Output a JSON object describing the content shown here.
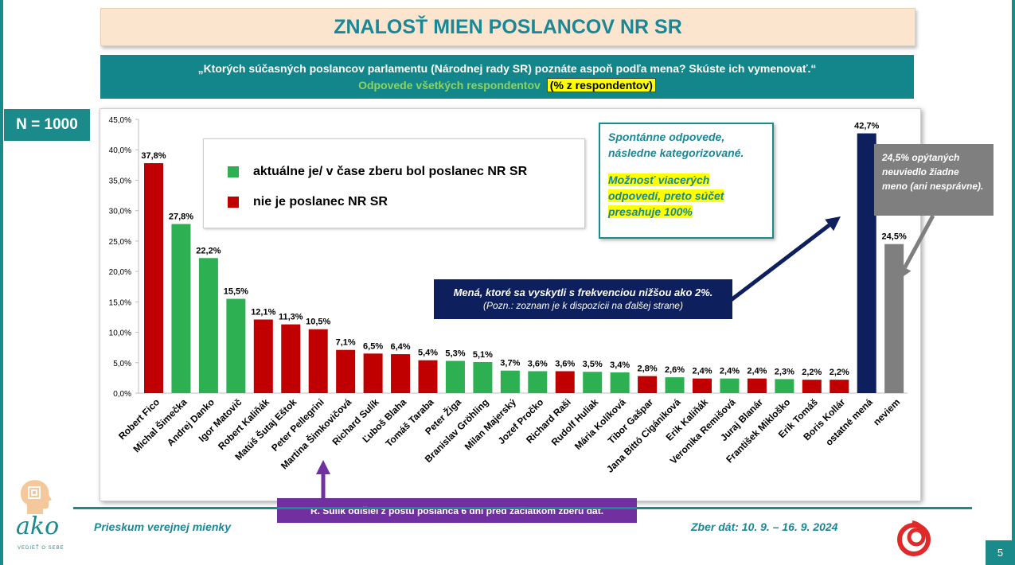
{
  "title": "ZNALOSŤ MIEN POSLANCOV NR SR",
  "question": {
    "text": "„Ktorých súčasných poslancov parlamentu (Národnej rady SR) poznáte aspoň podľa mena? Skúste ich vymenovať.“",
    "subtitle": "Odpovede všetkých respondentov",
    "unit_note": "(% z respondentov)"
  },
  "sample": "N = 1000",
  "legend": [
    {
      "label": "aktuálne je/ v čase zberu bol poslanec NR SR",
      "color": "#2db052"
    },
    {
      "label": "nie je poslanec NR SR",
      "color": "#c00000"
    }
  ],
  "notes": {
    "teal_line1": "Spontánne odpovede,",
    "teal_line2": "následne kategorizované.",
    "teal_hl1": "Možnosť viacerých",
    "teal_hl2": "odpovedí, preto súčet",
    "teal_hl3": "presahuje 100%",
    "navy_line1": "Mená, ktoré sa vyskytli  s frekvenciou nižšou ako 2%.",
    "navy_line2": "(Pozn.: zoznam je k dispozícii na ďalšej strane)",
    "gray": "24,5% opýtaných neuviedlo žiadne meno (ani nesprávne).",
    "purple": "R. Sulík odišiel z postu poslanca 6 dní pred začiatkom zberu dát."
  },
  "footer": {
    "left": "Prieskum verejnej mienky",
    "right": "Zber dát: 10. 9. – 16. 9. 2024",
    "logo": "ako",
    "logo_tag": "VEDIEŤ O SEBE",
    "page": "5"
  },
  "colors": {
    "mp": "#2db052",
    "non_mp": "#c00000",
    "other": "#0d1f5c",
    "dont_know": "#7f7f7f"
  },
  "chart_data": {
    "type": "bar",
    "ylim": [
      0,
      45
    ],
    "yticks": [
      "0,0%",
      "5,0%",
      "10,0%",
      "15,0%",
      "20,0%",
      "25,0%",
      "30,0%",
      "35,0%",
      "40,0%",
      "45,0%"
    ],
    "grid": false,
    "categories": [
      "Robert Fico",
      "Michal Šimečka",
      "Andrej Danko",
      "Igor Matovič",
      "Robert Kaliňák",
      "Matúš Šutaj Eštok",
      "Peter Pellegrini",
      "Martina Šimkovičová",
      "Richard Sulík",
      "Ľuboš Blaha",
      "Tomáš Taraba",
      "Peter Žiga",
      "Branislav Gröhling",
      "Milan Majerský",
      "Jozef Pročko",
      "Richard Raši",
      "Rudolf Huliak",
      "Mária Kolíková",
      "Tibor Gašpar",
      "Jana Bittó Cigániková",
      "Erik Kaliňák",
      "Veronika Remišová",
      "Juraj Blanár",
      "František Mikloško",
      "Erik Tomáš",
      "Boris Kollár",
      "ostatné mená",
      "neviem"
    ],
    "values": [
      37.8,
      27.8,
      22.2,
      15.5,
      12.1,
      11.3,
      10.5,
      7.1,
      6.5,
      6.4,
      5.4,
      5.3,
      5.1,
      3.7,
      3.6,
      3.6,
      3.5,
      3.4,
      2.8,
      2.6,
      2.4,
      2.4,
      2.4,
      2.3,
      2.2,
      2.2,
      42.7,
      24.5
    ],
    "labels": [
      "37,8%",
      "27,8%",
      "22,2%",
      "15,5%",
      "12,1%",
      "11,3%",
      "10,5%",
      "7,1%",
      "6,5%",
      "6,4%",
      "5,4%",
      "5,3%",
      "5,1%",
      "3,7%",
      "3,6%",
      "3,6%",
      "3,5%",
      "3,4%",
      "2,8%",
      "2,6%",
      "2,4%",
      "2,4%",
      "2,4%",
      "2,3%",
      "2,2%",
      "2,2%",
      "42,7%",
      "24,5%"
    ],
    "groups": [
      "non_mp",
      "mp",
      "mp",
      "mp",
      "non_mp",
      "non_mp",
      "non_mp",
      "non_mp",
      "non_mp",
      "non_mp",
      "non_mp",
      "mp",
      "mp",
      "mp",
      "mp",
      "non_mp",
      "mp",
      "mp",
      "non_mp",
      "mp",
      "non_mp",
      "mp",
      "non_mp",
      "mp",
      "non_mp",
      "non_mp",
      "other",
      "dont_know"
    ]
  }
}
